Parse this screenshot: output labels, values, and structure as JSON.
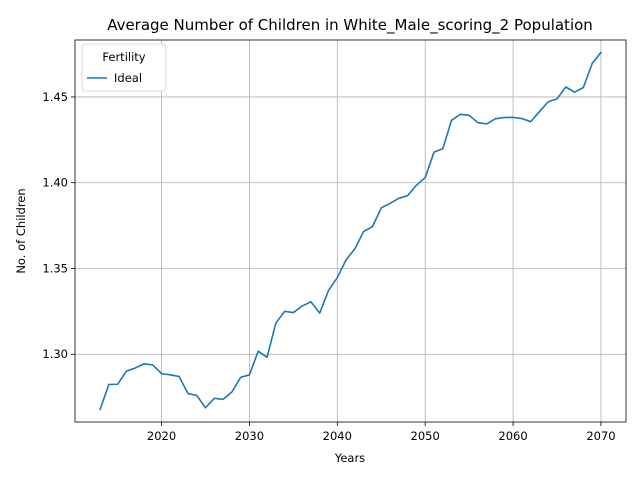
{
  "colors": {
    "series": "#1f77b4",
    "grid": "#b0b0b0"
  },
  "chart_data": {
    "type": "line",
    "title": "Average Number of Children in White_Male_scoring_2 Population",
    "xlabel": "Years",
    "ylabel": "No. of Children",
    "xlim": [
      2010.15,
      2072.85
    ],
    "ylim": [
      1.2605,
      1.4832
    ],
    "xticks": [
      2020,
      2030,
      2040,
      2050,
      2060,
      2070
    ],
    "yticks": [
      1.3,
      1.35,
      1.4,
      1.45
    ],
    "xtick_labels": [
      "2020",
      "2030",
      "2040",
      "2050",
      "2060",
      "2070"
    ],
    "ytick_labels": [
      "1.30",
      "1.35",
      "1.40",
      "1.45"
    ],
    "grid": true,
    "legend": {
      "title": "Fertility",
      "placement": "top-left"
    },
    "series": [
      {
        "name": "Ideal",
        "color": "#1f77b4",
        "x": [
          2013,
          2014,
          2015,
          2016,
          2017,
          2018,
          2019,
          2020,
          2021,
          2022,
          2023,
          2024,
          2025,
          2026,
          2027,
          2028,
          2029,
          2030,
          2031,
          2032,
          2033,
          2034,
          2035,
          2036,
          2037,
          2038,
          2039,
          2040,
          2041,
          2042,
          2043,
          2044,
          2045,
          2046,
          2047,
          2048,
          2049,
          2050,
          2051,
          2052,
          2053,
          2054,
          2055,
          2056,
          2057,
          2058,
          2059,
          2060,
          2061,
          2062,
          2063,
          2064,
          2065,
          2066,
          2067,
          2068,
          2069,
          2070
        ],
        "values": [
          1.2677,
          1.2824,
          1.2825,
          1.2901,
          1.292,
          1.2944,
          1.2938,
          1.2887,
          1.288,
          1.287,
          1.2771,
          1.276,
          1.2688,
          1.2743,
          1.2737,
          1.278,
          1.2865,
          1.288,
          1.3018,
          1.2982,
          1.3181,
          1.325,
          1.3243,
          1.3281,
          1.3306,
          1.324,
          1.3372,
          1.3447,
          1.3551,
          1.3615,
          1.3716,
          1.3744,
          1.3853,
          1.388,
          1.3909,
          1.3925,
          1.3985,
          1.403,
          1.4178,
          1.4198,
          1.4364,
          1.4399,
          1.4393,
          1.435,
          1.4343,
          1.4373,
          1.438,
          1.4381,
          1.4374,
          1.4356,
          1.4414,
          1.4472,
          1.4489,
          1.4558,
          1.4528,
          1.4555,
          1.4695,
          1.476
        ]
      }
    ]
  }
}
